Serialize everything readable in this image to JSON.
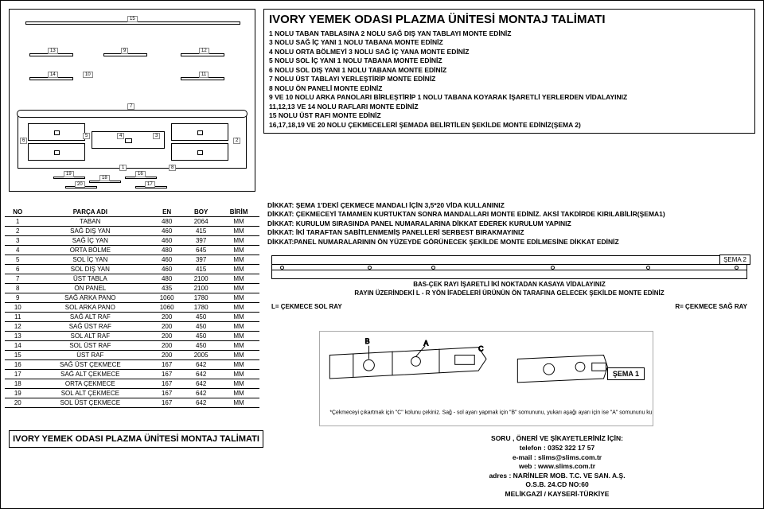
{
  "title": "IVORY YEMEK ODASI PLAZMA ÜNİTESİ MONTAJ TALİMATI",
  "steps": [
    "1 NOLU TABAN TABLASINA 2 NOLU SAĞ DIŞ YAN TABLAYI MONTE EDİNİZ",
    "3 NOLU SAĞ İÇ YANI 1 NOLU TABANA MONTE EDİNİZ",
    "4 NOLU ORTA BÖLMEYİ 3 NOLU SAĞ İÇ YANA MONTE EDİNİZ",
    "5 NOLU SOL İÇ YANI 1 NOLU TABANA MONTE EDİNİZ",
    "6 NOLU SOL DIŞ YANI 1 NOLU TABANA MONTE EDİNİZ",
    "7 NOLU ÜST TABLAYI YERLEŞTİRİP MONTE EDİNİZ",
    "8 NOLU ÖN PANELİ MONTE EDİNİZ",
    "9 VE 10 NOLU ARKA PANOLARI BİRLEŞTİRİP 1 NOLU TABANA KOYARAK İŞARETLİ YERLERDEN VİDALAYINIZ",
    "11,12,13 VE 14 NOLU RAFLARI MONTE EDİNİZ",
    "15 NOLU ÜST RAFI MONTE EDİNİZ",
    "16,17,18,19 VE 20 NOLU ÇEKMECELERİ ŞEMADA BELİRTİLEN ŞEKİLDE MONTE EDİNİZ(ŞEMA 2)"
  ],
  "table": {
    "headers": [
      "NO",
      "PARÇA ADI",
      "EN",
      "BOY",
      "BİRİM"
    ],
    "rows": [
      [
        "1",
        "TABAN",
        "480",
        "2064",
        "MM"
      ],
      [
        "2",
        "SAĞ DIŞ YAN",
        "460",
        "415",
        "MM"
      ],
      [
        "3",
        "SAĞ İÇ YAN",
        "460",
        "397",
        "MM"
      ],
      [
        "4",
        "ORTA BÖLME",
        "480",
        "645",
        "MM"
      ],
      [
        "5",
        "SOL İÇ YAN",
        "460",
        "397",
        "MM"
      ],
      [
        "6",
        "SOL DIŞ YAN",
        "460",
        "415",
        "MM"
      ],
      [
        "7",
        "ÜST TABLA",
        "480",
        "2100",
        "MM"
      ],
      [
        "8",
        "ÖN PANEL",
        "435",
        "2100",
        "MM"
      ],
      [
        "9",
        "SAĞ ARKA PANO",
        "1060",
        "1780",
        "MM"
      ],
      [
        "10",
        "SOL ARKA PANO",
        "1060",
        "1780",
        "MM"
      ],
      [
        "11",
        "SAĞ ALT RAF",
        "200",
        "450",
        "MM"
      ],
      [
        "12",
        "SAĞ ÜST RAF",
        "200",
        "450",
        "MM"
      ],
      [
        "13",
        "SOL ALT RAF",
        "200",
        "450",
        "MM"
      ],
      [
        "14",
        "SOL ÜST RAF",
        "200",
        "450",
        "MM"
      ],
      [
        "15",
        "ÜST RAF",
        "200",
        "2005",
        "MM"
      ],
      [
        "16",
        "SAĞ ÜST ÇEKMECE",
        "167",
        "642",
        "MM"
      ],
      [
        "17",
        "SAĞ ALT ÇEKMECE",
        "167",
        "642",
        "MM"
      ],
      [
        "18",
        "ORTA ÇEKMECE",
        "167",
        "642",
        "MM"
      ],
      [
        "19",
        "SOL ALT ÇEKMECE",
        "167",
        "642",
        "MM"
      ],
      [
        "20",
        "SOL ÜST ÇEKMECE",
        "167",
        "642",
        "MM"
      ]
    ]
  },
  "notes": [
    "DİKKAT: ŞEMA 1'DEKİ ÇEKMECE MANDALI İÇİN 3,5*20 VİDA KULLANINIZ",
    "DİKKAT: ÇEKMECEYİ TAMAMEN KURTUKTAN SONRA MANDALLARI MONTE EDİNİZ. AKSİ TAKDİRDE KIRILABİLİR(ŞEMA1)",
    "DİKKAT: KURULUM SIRASINDA PANEL NUMARALARINA DİKKAT EDEREK KURULUM YAPINIZ",
    "DİKKAT: İKİ TARAFTAN SABİTLENMEMİŞ PANELLERİ SERBEST BIRAKMAYINIZ",
    "DİKKAT:PANEL NUMARALARININ ÖN YÜZEYDE GÖRÜNECEK ŞEKİLDE MONTE EDİLMESİNE DİKKAT EDİNİZ"
  ],
  "sema2": {
    "label": "ŞEMA 2",
    "caption1": "BAS-ÇEK RAYI İŞARETLİ İKİ NOKTADAN KASAYA VİDALAYINIZ",
    "caption2": "RAYIN ÜZERİNDEKİ L - R YÖN İFADELERİ ÜRÜNÜN ÖN TARAFINA GELECEK ŞEKİLDE MONTE EDİNİZ",
    "left": "L= ÇEKMECE SOL RAY",
    "right": "R= ÇEKMECE SAĞ RAY"
  },
  "sema1": {
    "label": "ŞEMA 1",
    "caption": "*Çekmeceyi çıkartmak için \"C\" kolunu çekiniz. Sağ - sol ayarı yapmak için \"B\" somununu, yukarı aşağı ayarı için ise \"A\" somununu kullanınız."
  },
  "footer_title": "IVORY YEMEK ODASI PLAZMA ÜNİTESİ MONTAJ TALİMATI",
  "contact": {
    "head": "SORU , ÖNERİ VE ŞİKAYETLERİNİZ İÇİN:",
    "phone": "telefon : 0352 322 17 57",
    "email": "e-mail : slims@slims.com.tr",
    "web": "web : www.slims.com.tr",
    "addr": "adres : NARİNLER MOB. T.C. VE SAN. A.Ş.",
    "addr2": "O.S.B. 24.CD NO:60",
    "addr3": "MELİKGAZİ / KAYSERİ-TÜRKİYE"
  },
  "colors": {
    "line": "#000000",
    "bg": "#ffffff"
  }
}
